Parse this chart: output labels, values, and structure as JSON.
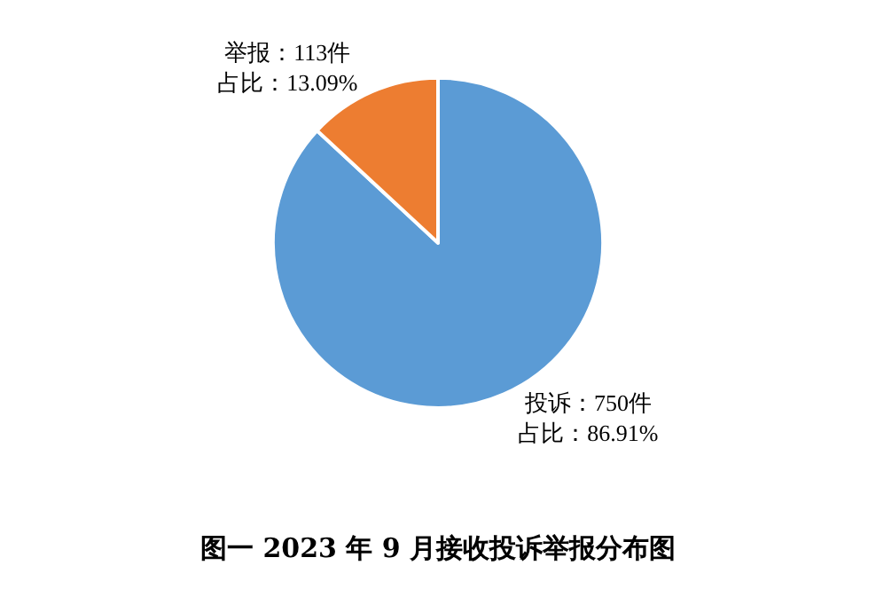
{
  "chart_data": {
    "type": "pie",
    "title": "图一 2023 年 9 月接收投诉举报分布图",
    "categories": [
      "投诉：750件",
      "举报：113件"
    ],
    "values": [
      86.91,
      13.09
    ],
    "colors": [
      "#5b9bd5",
      "#ed7d31"
    ],
    "value_labels": [
      "占比：86.91%",
      "占比：13.09%"
    ],
    "legend": false
  }
}
